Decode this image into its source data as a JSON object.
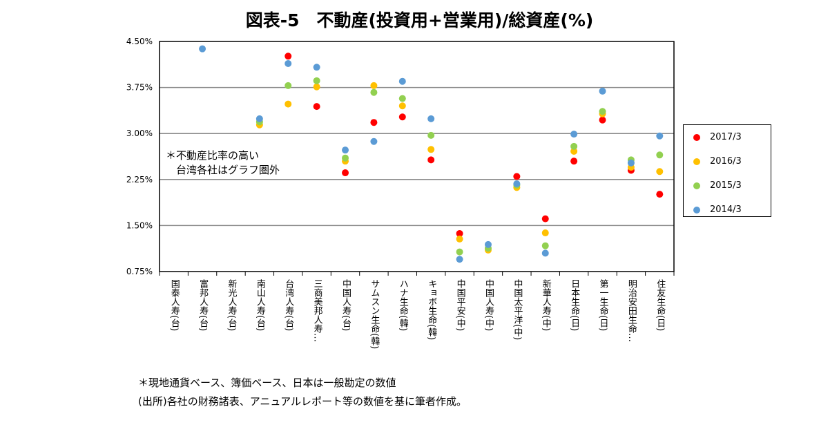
{
  "title": "図表-5　不動産(投資用+営業用)/総資産(%)",
  "annotation": [
    "＊不動産比率の高い",
    "　台湾各社はグラフ圏外"
  ],
  "notes": [
    "＊現地通貨ベース、簿価ベース、日本は一般勘定の数値",
    "(出所)各社の財務諸表、アニュアルレポート等の数値を基に筆者作成。"
  ],
  "chart_data": {
    "type": "scatter",
    "title": "図表-5　不動産(投資用+営業用)/総資産(%)",
    "ylim": [
      0.75,
      4.5
    ],
    "yticks": [
      "0.75%",
      "1.50%",
      "2.25%",
      "3.00%",
      "3.75%",
      "4.50%"
    ],
    "ytick_values": [
      0.75,
      1.5,
      2.25,
      3.0,
      3.75,
      4.5
    ],
    "grid": true,
    "legend": "right",
    "categories": [
      "国泰人寿(台)",
      "富邦人寿(台)",
      "新光人寿(台)",
      "南山人寿(台)",
      "台湾人寿(台)",
      "三商美邦人寿…",
      "中国人寿(台)",
      "サムスン生命(韓)",
      "ハナ生命(韓)",
      "キョボ生命(韓)",
      "中国平安(中)",
      "中国人寿(中)",
      "中国太平洋(中)",
      "新華人寿(中)",
      "日本生命(日)",
      "第一生命(日)",
      "明治安田生命…",
      "住友生命(日)"
    ],
    "series": [
      {
        "name": "2017/3",
        "color": "#FF0000",
        "values": [
          null,
          null,
          null,
          null,
          4.26,
          3.44,
          2.36,
          3.18,
          3.27,
          2.57,
          1.37,
          null,
          2.3,
          1.61,
          2.55,
          3.22,
          2.4,
          2.01
        ]
      },
      {
        "name": "2016/3",
        "color": "#FFC000",
        "values": [
          null,
          null,
          null,
          3.14,
          3.48,
          3.76,
          2.55,
          3.78,
          3.45,
          2.74,
          1.28,
          1.1,
          2.12,
          1.38,
          2.71,
          3.32,
          2.45,
          2.38
        ]
      },
      {
        "name": "2015/3",
        "color": "#92D050",
        "values": [
          null,
          null,
          null,
          3.19,
          3.78,
          3.86,
          2.6,
          3.67,
          3.57,
          2.97,
          1.07,
          1.13,
          2.16,
          1.17,
          2.79,
          3.36,
          2.57,
          2.65
        ]
      },
      {
        "name": "2014/3",
        "color": "#5B9BD5",
        "values": [
          null,
          4.38,
          null,
          3.24,
          4.14,
          4.08,
          2.73,
          2.87,
          3.85,
          3.24,
          0.95,
          1.19,
          2.18,
          1.05,
          2.99,
          3.69,
          2.52,
          2.96
        ]
      }
    ]
  }
}
